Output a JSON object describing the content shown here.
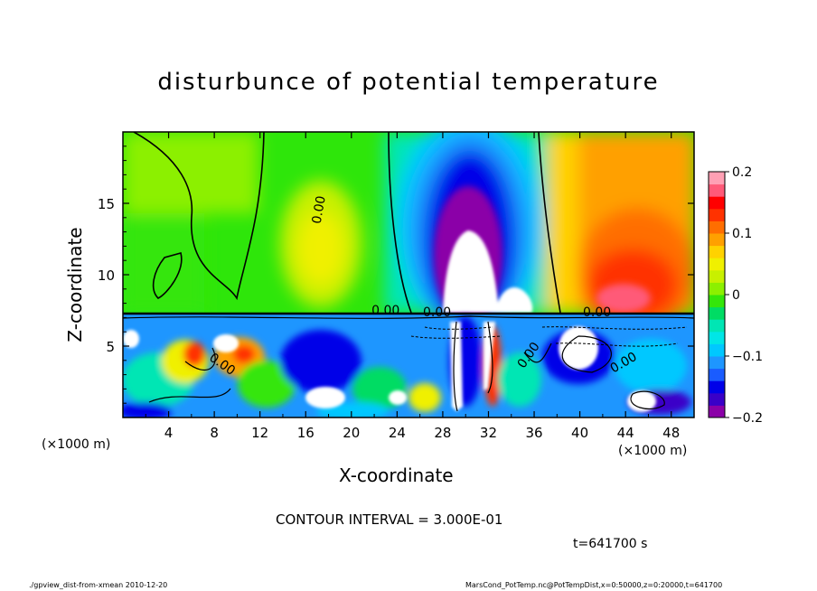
{
  "title": "disturbunce of potential temperature",
  "chart_data": {
    "type": "heatmap",
    "title": "disturbunce of potential temperature",
    "xlabel": "X-coordinate",
    "ylabel": "Z-coordinate",
    "x_unit_left": "(×1000 m)",
    "x_unit_right": "(×1000 m)",
    "xlim": [
      0,
      50
    ],
    "ylim": [
      0,
      20
    ],
    "x_ticks": [
      "4",
      "8",
      "12",
      "16",
      "20",
      "24",
      "28",
      "32",
      "36",
      "40",
      "44",
      "48"
    ],
    "x_tick_values": [
      4,
      8,
      12,
      16,
      20,
      24,
      28,
      32,
      36,
      40,
      44,
      48
    ],
    "y_ticks": [
      "5",
      "10",
      "15"
    ],
    "y_tick_values": [
      5,
      10,
      15
    ],
    "colorbar": {
      "min": -0.2,
      "max": 0.2,
      "tick_labels": [
        "0.2",
        "0.1",
        "0",
        "−0.1",
        "−0.2"
      ],
      "tick_values": [
        0.2,
        0.1,
        0,
        -0.1,
        -0.2
      ],
      "colors": [
        "#8b00a8",
        "#3a00c8",
        "#0000e8",
        "#1a5cff",
        "#1e96ff",
        "#00c8ff",
        "#00e6e6",
        "#00e6b4",
        "#00dc64",
        "#34e60a",
        "#8cf000",
        "#c8f000",
        "#f0f000",
        "#ffd200",
        "#ffa000",
        "#ff6e00",
        "#ff3200",
        "#ff0000",
        "#ff5a78",
        "#ffa0b4"
      ]
    },
    "contour_labels": [
      {
        "text": "0.00",
        "x": 17.5,
        "z": 14.5,
        "rot": -80
      },
      {
        "text": "0.00",
        "x": 23.0,
        "z": 7.2,
        "rot": 0
      },
      {
        "text": "0.00",
        "x": 27.5,
        "z": 7.1,
        "rot": 0
      },
      {
        "text": "0.00",
        "x": 41.5,
        "z": 7.1,
        "rot": 0
      },
      {
        "text": "0.00",
        "x": 8.5,
        "z": 3.5,
        "rot": 35
      },
      {
        "text": "0.00",
        "x": 44.0,
        "z": 3.6,
        "rot": -30
      },
      {
        "text": "0.00",
        "x": 35.8,
        "z": 4.2,
        "rot": -55
      }
    ],
    "contour_interval_text": "CONTOUR INTERVAL = 3.000E-01"
  },
  "time_text": "t=641700 s",
  "footer_left": "./gpview_dist-from-xmean  2010-12-20",
  "footer_right": "MarsCond_PotTemp.nc@PotTempDist,x=0:50000,z=0:20000,t=641700"
}
